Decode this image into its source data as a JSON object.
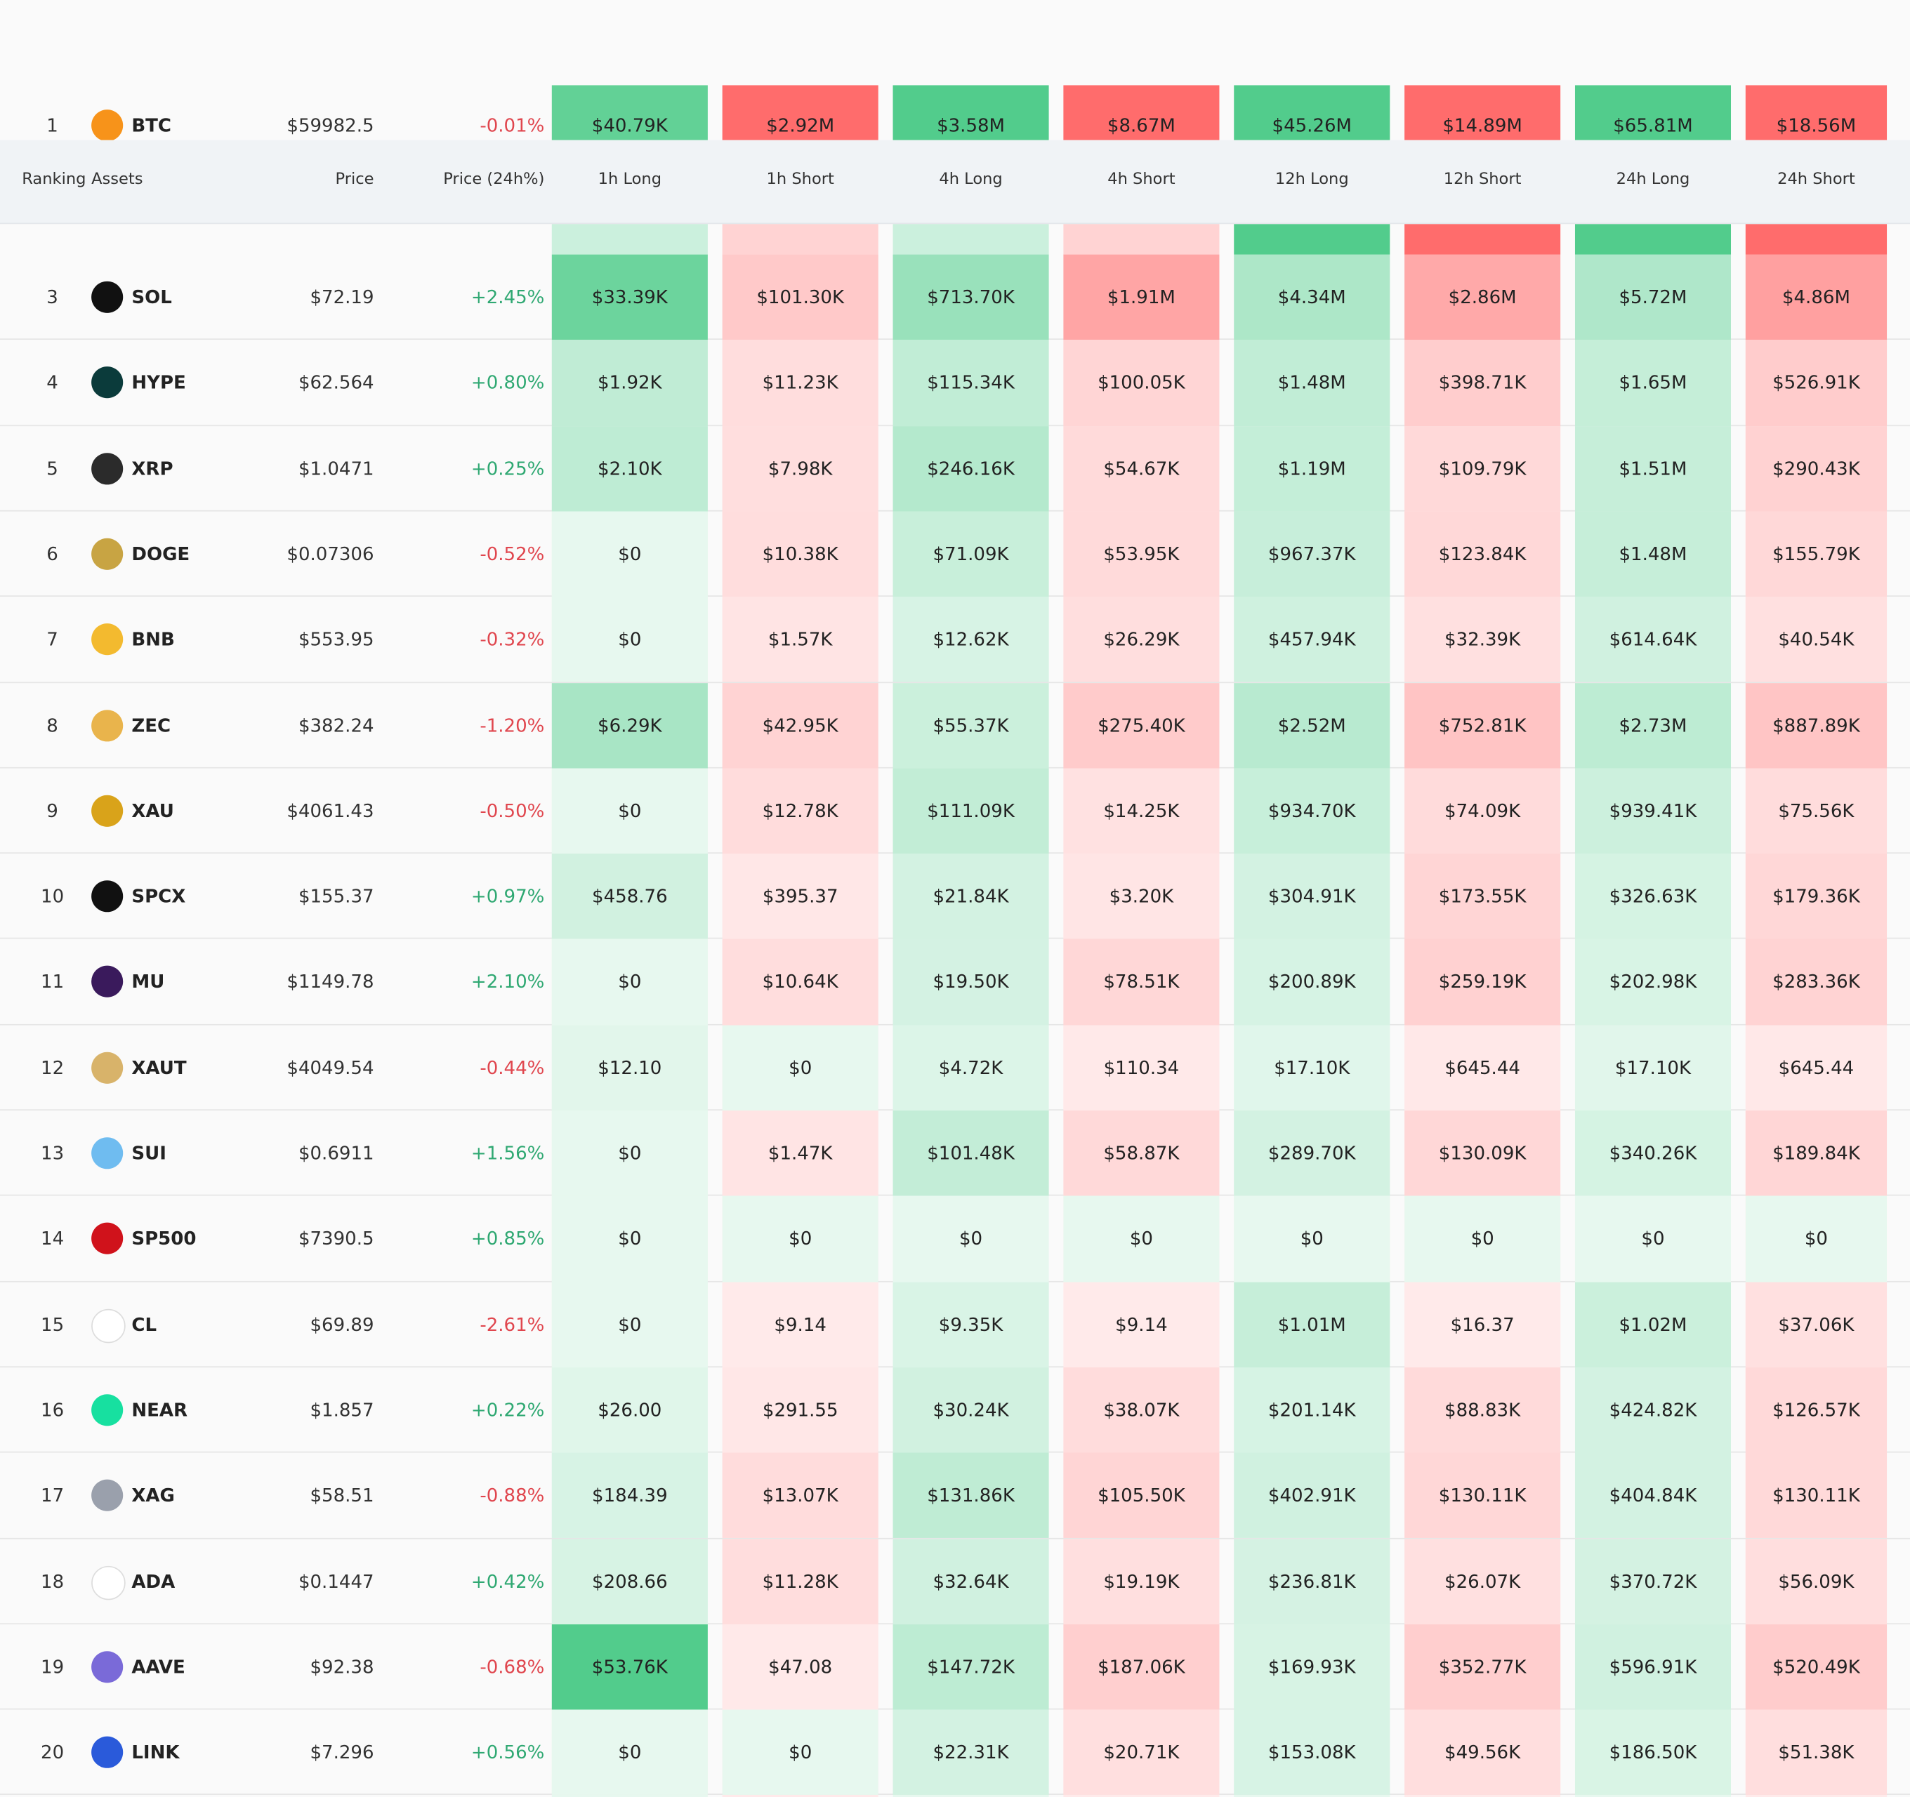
{
  "table": {
    "columns": [
      "Ranking",
      "Assets",
      "Price",
      "Price (24h%)",
      "1h Long",
      "1h Short",
      "4h Long",
      "4h Short",
      "12h Long",
      "12h Short",
      "24h Long",
      "24h Short"
    ],
    "rows": [
      [
        "1",
        "BTC",
        "$59982.5",
        "-0.01%",
        "$40.79K",
        "$2.92M",
        "$3.58M",
        "$8.67M",
        "$45.26M",
        "$14.89M",
        "$65.81M",
        "$18.56M"
      ],
      [
        "3",
        "SOL",
        "$72.19",
        "+2.45%",
        "$33.39K",
        "$101.30K",
        "$713.70K",
        "$1.91M",
        "$4.34M",
        "$2.86M",
        "$5.72M",
        "$4.86M"
      ],
      [
        "4",
        "HYPE",
        "$62.564",
        "+0.80%",
        "$1.92K",
        "$11.23K",
        "$115.34K",
        "$100.05K",
        "$1.48M",
        "$398.71K",
        "$1.65M",
        "$526.91K"
      ],
      [
        "5",
        "XRP",
        "$1.0471",
        "+0.25%",
        "$2.10K",
        "$7.98K",
        "$246.16K",
        "$54.67K",
        "$1.19M",
        "$109.79K",
        "$1.51M",
        "$290.43K"
      ],
      [
        "6",
        "DOGE",
        "$0.07306",
        "-0.52%",
        "$0",
        "$10.38K",
        "$71.09K",
        "$53.95K",
        "$967.37K",
        "$123.84K",
        "$1.48M",
        "$155.79K"
      ],
      [
        "7",
        "BNB",
        "$553.95",
        "-0.32%",
        "$0",
        "$1.57K",
        "$12.62K",
        "$26.29K",
        "$457.94K",
        "$32.39K",
        "$614.64K",
        "$40.54K"
      ],
      [
        "8",
        "ZEC",
        "$382.24",
        "-1.20%",
        "$6.29K",
        "$42.95K",
        "$55.37K",
        "$275.40K",
        "$2.52M",
        "$752.81K",
        "$2.73M",
        "$887.89K"
      ],
      [
        "9",
        "XAU",
        "$4061.43",
        "-0.50%",
        "$0",
        "$12.78K",
        "$111.09K",
        "$14.25K",
        "$934.70K",
        "$74.09K",
        "$939.41K",
        "$75.56K"
      ],
      [
        "10",
        "SPCX",
        "$155.37",
        "+0.97%",
        "$458.76",
        "$395.37",
        "$21.84K",
        "$3.20K",
        "$304.91K",
        "$173.55K",
        "$326.63K",
        "$179.36K"
      ],
      [
        "11",
        "MU",
        "$1149.78",
        "+2.10%",
        "$0",
        "$10.64K",
        "$19.50K",
        "$78.51K",
        "$200.89K",
        "$259.19K",
        "$202.98K",
        "$283.36K"
      ],
      [
        "12",
        "XAUT",
        "$4049.54",
        "-0.44%",
        "$12.10",
        "$0",
        "$4.72K",
        "$110.34",
        "$17.10K",
        "$645.44",
        "$17.10K",
        "$645.44"
      ],
      [
        "13",
        "SUI",
        "$0.6911",
        "+1.56%",
        "$0",
        "$1.47K",
        "$101.48K",
        "$58.87K",
        "$289.70K",
        "$130.09K",
        "$340.26K",
        "$189.84K"
      ],
      [
        "14",
        "SP500",
        "$7390.5",
        "+0.85%",
        "$0",
        "$0",
        "$0",
        "$0",
        "$0",
        "$0",
        "$0",
        "$0"
      ],
      [
        "15",
        "CL",
        "$69.89",
        "-2.61%",
        "$0",
        "$9.14",
        "$9.35K",
        "$9.14",
        "$1.01M",
        "$16.37",
        "$1.02M",
        "$37.06K"
      ],
      [
        "16",
        "NEAR",
        "$1.857",
        "+0.22%",
        "$26.00",
        "$291.55",
        "$30.24K",
        "$38.07K",
        "$201.14K",
        "$88.83K",
        "$424.82K",
        "$126.57K"
      ],
      [
        "17",
        "XAG",
        "$58.51",
        "-0.88%",
        "$184.39",
        "$13.07K",
        "$131.86K",
        "$105.50K",
        "$402.91K",
        "$130.11K",
        "$404.84K",
        "$130.11K"
      ],
      [
        "18",
        "ADA",
        "$0.1447",
        "+0.42%",
        "$208.66",
        "$11.28K",
        "$32.64K",
        "$19.19K",
        "$236.81K",
        "$26.07K",
        "$370.72K",
        "$56.09K"
      ],
      [
        "19",
        "AAVE",
        "$92.38",
        "-0.68%",
        "$53.76K",
        "$47.08",
        "$147.72K",
        "$187.06K",
        "$169.93K",
        "$352.77K",
        "$596.91K",
        "$520.49K"
      ],
      [
        "20",
        "LINK",
        "$7.296",
        "+0.56%",
        "$0",
        "$0",
        "$22.31K",
        "$20.71K",
        "$153.08K",
        "$49.56K",
        "$186.50K",
        "$51.38K"
      ]
    ]
  }
}
